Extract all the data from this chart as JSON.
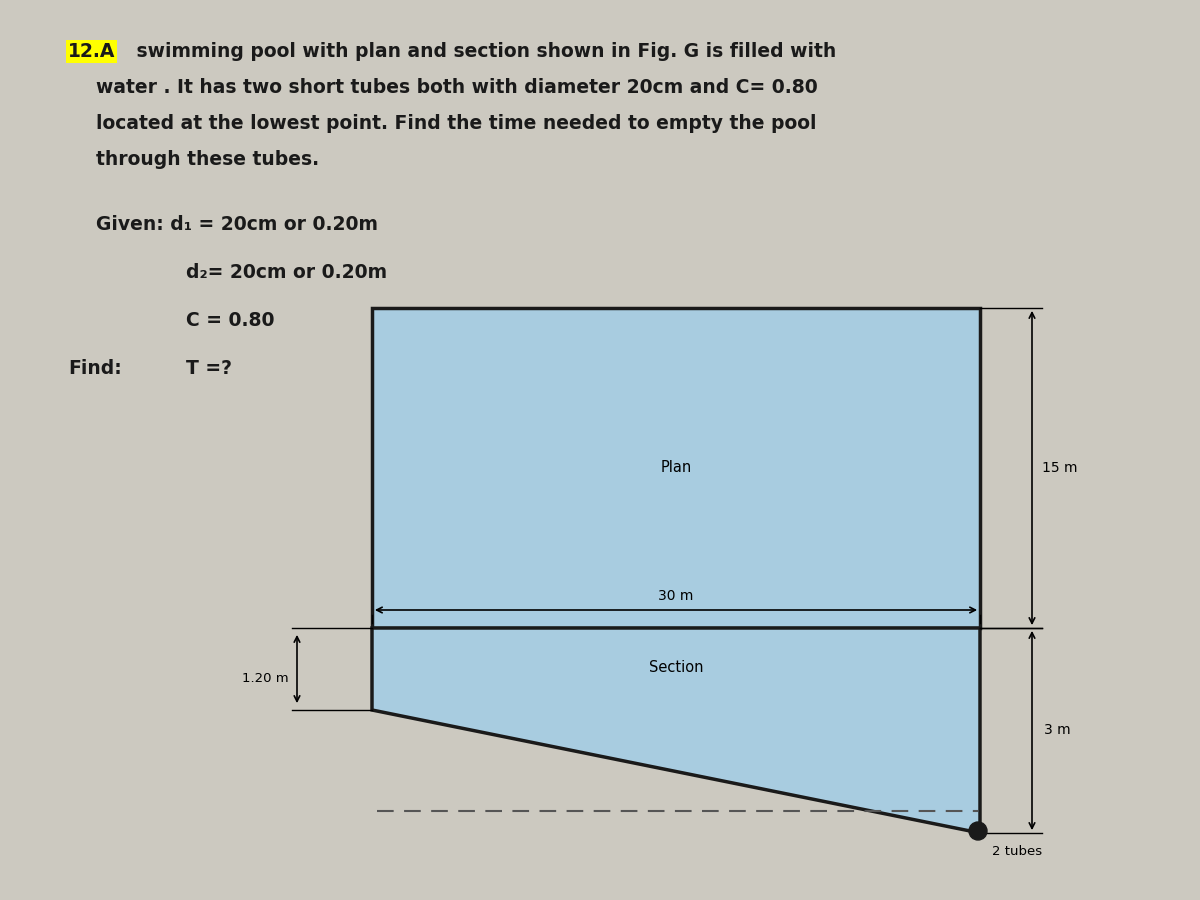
{
  "bg_color": "#ccc9c0",
  "text_color": "#1a1a1a",
  "highlight_color": "#ffff00",
  "pool_blue": "#a8cce0",
  "pool_border": "#1a1a1a",
  "label_plan": "Plan",
  "label_section": "Section",
  "label_15m": "15 m",
  "label_30m": "30 m",
  "label_120m": "1.20 m",
  "label_3m": "3 m",
  "label_2tubes": "2 tubes"
}
